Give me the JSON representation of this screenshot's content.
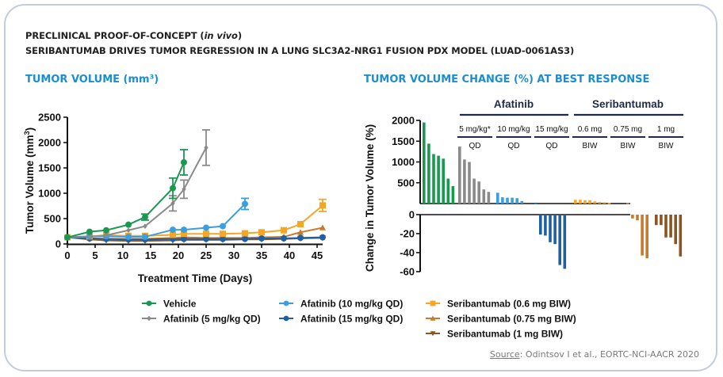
{
  "header": {
    "line1_prefix": "PRECLINICAL PROOF-OF-CONCEPT (",
    "line1_italic": "in vivo",
    "line1_suffix": ")",
    "line2": "SERIBANTUMAB DRIVES TUMOR REGRESSION IN A LUNG SLC3A2-NRG1 FUSION PDX MODEL (LUAD-0061AS3)"
  },
  "source": {
    "label": "Source",
    "text": ": Odintsov I et al., EORTC-NCI-AACR 2020"
  },
  "colors": {
    "vehicle": "#1a9850",
    "afat5": "#8a8a8a",
    "afat10": "#3b9ede",
    "afat15": "#1f5fa3",
    "seri06": "#f5a623",
    "seri075": "#c97a2a",
    "seri1": "#8a5522",
    "accent": "#1b8ed1"
  },
  "chart_data": [
    {
      "type": "line",
      "title": "TUMOR VOLUME (mm³)",
      "xlabel": "Treatment Time (Days)",
      "ylabel": "Tumor Volume (mm³)",
      "xlim": [
        0,
        46
      ],
      "ylim": [
        0,
        2500
      ],
      "xticks": [
        0,
        5,
        10,
        15,
        20,
        25,
        30,
        35,
        40,
        45
      ],
      "yticks": [
        0,
        500,
        1000,
        1500,
        2000,
        2500
      ],
      "legend_position": "bottom",
      "series": [
        {
          "name": "Vehicle",
          "key": "vehicle",
          "marker": "circle",
          "x": [
            0,
            4,
            7,
            11,
            14,
            19,
            21
          ],
          "y": [
            130,
            240,
            270,
            380,
            530,
            1100,
            1610
          ],
          "err": [
            0,
            0,
            0,
            0,
            60,
            200,
            250
          ]
        },
        {
          "name": "Afatinib (5 mg/kg QD)",
          "key": "afat5",
          "marker": "diamond",
          "x": [
            0,
            4,
            7,
            11,
            14,
            19,
            21,
            25
          ],
          "y": [
            130,
            140,
            170,
            270,
            350,
            800,
            1080,
            1900
          ],
          "err": [
            0,
            0,
            0,
            0,
            0,
            150,
            180,
            350
          ]
        },
        {
          "name": "Afatinib (10 mg/kg QD)",
          "key": "afat10",
          "marker": "circle",
          "x": [
            0,
            4,
            7,
            11,
            14,
            19,
            21,
            25,
            28,
            32
          ],
          "y": [
            130,
            150,
            150,
            140,
            140,
            280,
            280,
            320,
            350,
            790
          ],
          "err": [
            0,
            0,
            0,
            0,
            0,
            0,
            0,
            0,
            0,
            110
          ]
        },
        {
          "name": "Afatinib (15 mg/kg QD)",
          "key": "afat15",
          "marker": "circle",
          "x": [
            0,
            4,
            7,
            11,
            14,
            19,
            21,
            25,
            28,
            32,
            35,
            39,
            42,
            46
          ],
          "y": [
            130,
            110,
            100,
            90,
            90,
            100,
            100,
            100,
            100,
            100,
            110,
            110,
            120,
            130
          ],
          "err": []
        },
        {
          "name": "Seribantumab (0.6 mg BIW)",
          "key": "seri06",
          "marker": "square",
          "x": [
            0,
            4,
            7,
            11,
            14,
            19,
            21,
            25,
            28,
            32,
            35,
            39,
            42,
            46
          ],
          "y": [
            130,
            150,
            170,
            160,
            160,
            180,
            200,
            200,
            200,
            210,
            230,
            270,
            390,
            760
          ],
          "err": [
            0,
            0,
            0,
            0,
            0,
            0,
            0,
            0,
            0,
            0,
            0,
            0,
            0,
            120
          ]
        },
        {
          "name": "Seribantumab (0.75 mg BIW)",
          "key": "seri075",
          "marker": "triangle-up",
          "x": [
            0,
            4,
            7,
            11,
            14,
            19,
            21,
            25,
            28,
            32,
            35,
            39,
            42,
            46
          ],
          "y": [
            130,
            110,
            100,
            100,
            100,
            120,
            130,
            120,
            120,
            120,
            130,
            140,
            230,
            320
          ],
          "err": []
        },
        {
          "name": "Seribantumab (1 mg BIW)",
          "key": "seri1",
          "marker": "triangle-down",
          "x": [
            0,
            4,
            7,
            11,
            14,
            19,
            21,
            25,
            28,
            32,
            35,
            39,
            42,
            46
          ],
          "y": [
            130,
            90,
            70,
            60,
            60,
            70,
            80,
            80,
            80,
            90,
            90,
            100,
            110,
            120
          ],
          "err": []
        }
      ]
    },
    {
      "type": "bar",
      "subtype": "waterfall",
      "title": "TUMOR VOLUME CHANGE (%) AT BEST RESPONSE",
      "ylabel": "Change in Tumor Volume (%)",
      "upper_ylim": [
        0,
        2000
      ],
      "upper_yticks": [
        500,
        1000,
        1500,
        2000
      ],
      "lower_ylim": [
        -60,
        0
      ],
      "lower_yticks": [
        0,
        -20,
        -40,
        -60
      ],
      "drug_groups": [
        {
          "label": "Afatinib",
          "doses": [
            "afat5",
            "afat10",
            "afat15"
          ]
        },
        {
          "label": "Seribantumab",
          "doses": [
            "seri06",
            "seri075",
            "seri1"
          ]
        }
      ],
      "groups": [
        {
          "key": "vehicle",
          "dose": "",
          "schedule": "",
          "values": [
            1950,
            1440,
            1190,
            1150,
            1080,
            600,
            420
          ]
        },
        {
          "key": "afat5",
          "dose": "5 mg/kg*",
          "schedule": "QD",
          "values": [
            1370,
            1060,
            1000,
            600,
            530,
            340,
            280
          ]
        },
        {
          "key": "afat10",
          "dose": "10 mg/kg",
          "schedule": "QD",
          "values": [
            260,
            150,
            140,
            140,
            130,
            60
          ]
        },
        {
          "key": "afat15",
          "dose": "15 mg/kg",
          "schedule": "QD",
          "values": [
            20,
            -21,
            -22,
            -29,
            -31,
            -53,
            -57
          ]
        },
        {
          "key": "seri06",
          "dose": "0.6 mg",
          "schedule": "BIW",
          "values": [
            90,
            90,
            80,
            80,
            50,
            40,
            30,
            20
          ]
        },
        {
          "key": "seri075",
          "dose": "0.75 mg",
          "schedule": "BIW",
          "values": [
            10,
            -4,
            -6,
            -43,
            -46
          ]
        },
        {
          "key": "seri1",
          "dose": "1 mg",
          "schedule": "BIW",
          "values": [
            -11,
            -11,
            -24,
            -24,
            -31,
            -44
          ]
        }
      ]
    }
  ]
}
